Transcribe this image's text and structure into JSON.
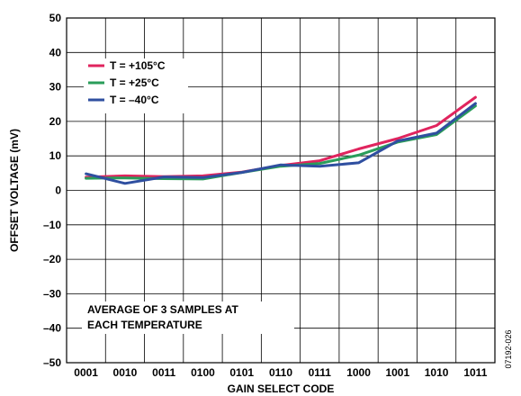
{
  "chart_data": {
    "type": "line",
    "categories": [
      "0001",
      "0010",
      "0011",
      "0100",
      "0101",
      "0110",
      "0111",
      "1000",
      "1001",
      "1010",
      "1011"
    ],
    "series": [
      {
        "name": "T = +105°C",
        "color": "#e0245e",
        "values": [
          3.8,
          4.2,
          4.0,
          4.2,
          5.3,
          7.2,
          8.6,
          12.0,
          15.0,
          18.8,
          27.0
        ]
      },
      {
        "name": "T = +25°C",
        "color": "#2a9d5a",
        "values": [
          3.5,
          3.6,
          3.4,
          3.3,
          5.2,
          7.0,
          7.8,
          10.2,
          14.0,
          16.2,
          24.5
        ]
      },
      {
        "name": "T = –40°C",
        "color": "#2f4fa0",
        "values": [
          4.8,
          2.0,
          3.9,
          3.7,
          5.2,
          7.4,
          7.0,
          8.0,
          14.3,
          16.6,
          25.2
        ]
      }
    ],
    "xlabel": "GAIN SELECT CODE",
    "ylabel": "OFFSET VOLTAGE (mV)",
    "ylim": [
      -50,
      50
    ],
    "yticks": [
      -50,
      -40,
      -30,
      -20,
      -10,
      0,
      10,
      20,
      30,
      40,
      50
    ],
    "ytick_labels": [
      "–50",
      "–40",
      "–30",
      "–20",
      "–10",
      "0",
      "10",
      "20",
      "30",
      "40",
      "50"
    ],
    "grid": true,
    "legend": "top-left",
    "annotation": [
      "AVERAGE OF 3 SAMPLES AT",
      "EACH TEMPERATURE"
    ],
    "figure_id": "07192-026"
  }
}
